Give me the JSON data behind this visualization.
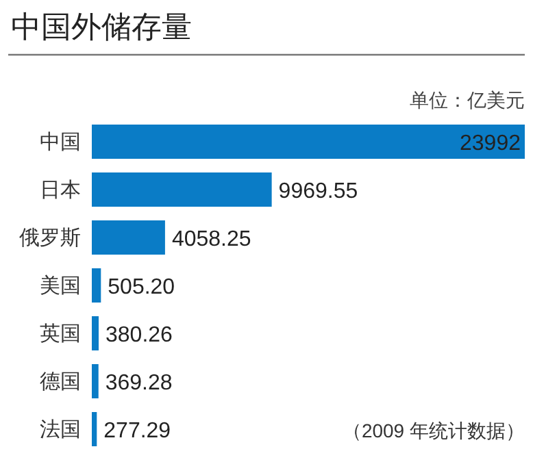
{
  "chart_data": {
    "type": "bar",
    "orientation": "horizontal",
    "title": "中国外储存量",
    "annotations": [
      "单位：亿美元",
      "（2009 年统计数据）"
    ],
    "categories": [
      "中国",
      "日本",
      "俄罗斯",
      "美国",
      "英国",
      "德国",
      "法国"
    ],
    "values": [
      23992,
      9969.55,
      4058.25,
      505.2,
      380.26,
      369.28,
      277.29
    ],
    "value_labels": [
      "23992",
      "9969.55",
      "4058.25",
      "505.20",
      "380.26",
      "369.28",
      "277.29"
    ],
    "color": "#0a7cc6"
  }
}
